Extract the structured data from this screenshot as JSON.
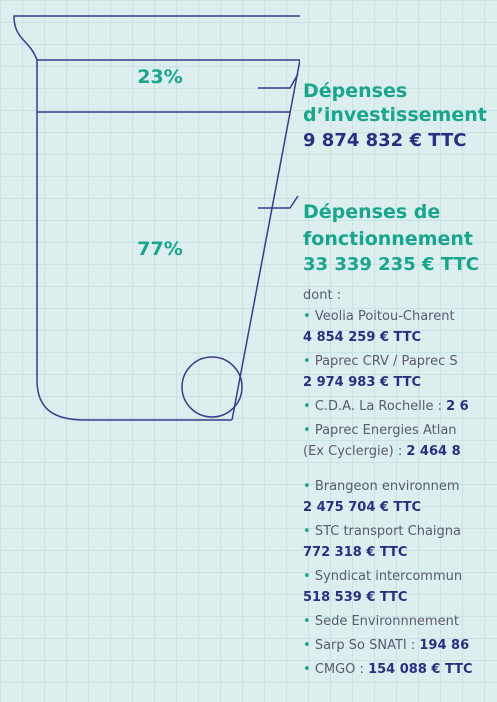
{
  "cup": {
    "top_share": "23%",
    "bottom_share": "77%"
  },
  "investment": {
    "title_1": "Dépenses",
    "title_2": "d’investissement",
    "amount": "9 874 832 € TTC"
  },
  "operating": {
    "title_1": "Dépenses de",
    "title_2": "fonctionnement",
    "amount": "33 339 235 € TTC",
    "intro": "dont :",
    "items": [
      {
        "name": "Veolia Poitou-Charent",
        "amount": "4 854 259  € TTC"
      },
      {
        "name": "Paprec CRV / Paprec S",
        "amount": "2 974 983 € TTC"
      },
      {
        "name": "C.D.A. La Rochelle : ",
        "amount": "2 6"
      },
      {
        "name": "Paprec Energies Atlan",
        "name_2": "(Ex Cyclergie) : ",
        "amount": "2 464 8"
      },
      {
        "name": "Brangeon environnem",
        "amount": "2 475 704 € TTC"
      },
      {
        "name": "STC transport Chaigna",
        "amount": "772 318 € TTC"
      },
      {
        "name": "Syndicat intercommun",
        "amount": "518 539 € TTC"
      },
      {
        "name": "Sede Environnnement"
      },
      {
        "name": "Sarp So SNATI : ",
        "amount": "194 86"
      },
      {
        "name": "CMGO : ",
        "amount": "154 088 € TTC"
      }
    ]
  }
}
